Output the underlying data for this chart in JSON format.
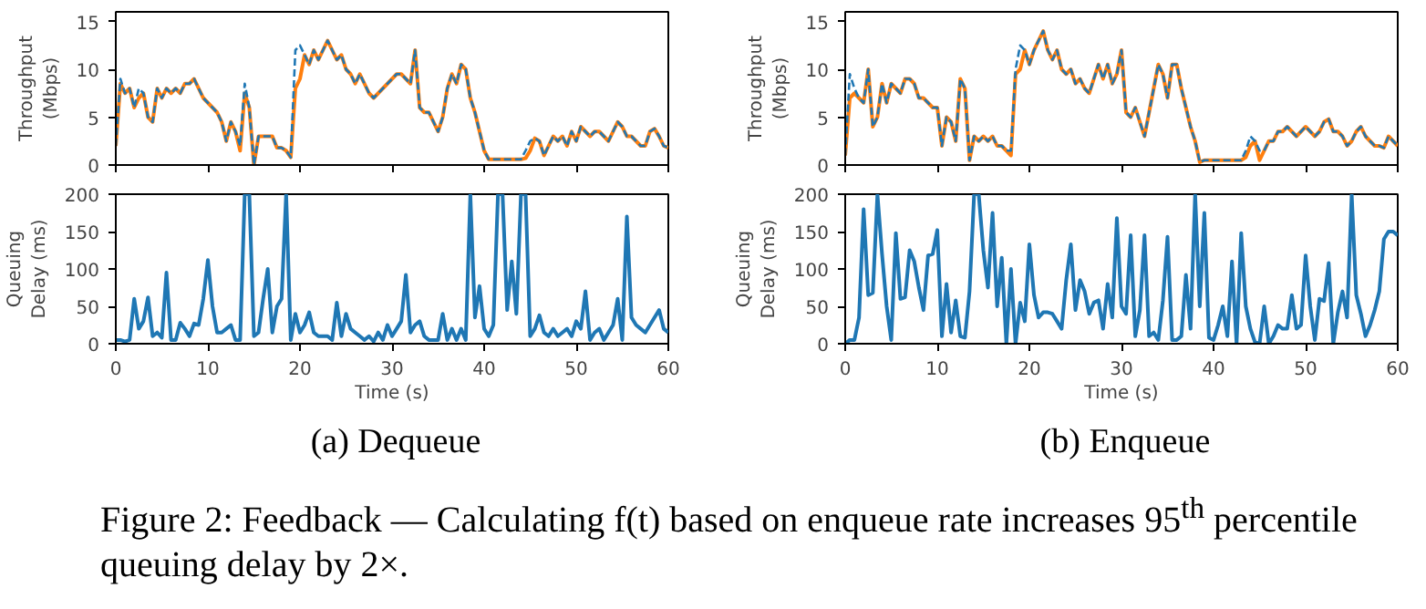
{
  "chart_data": [
    {
      "type": "line",
      "ylabel": "Throughput (Mbps)",
      "xlim": [
        0,
        60
      ],
      "xticks": [
        0,
        10,
        20,
        30,
        40,
        50,
        60
      ],
      "ylim": [
        0,
        16
      ],
      "yticks": [
        0,
        5,
        10,
        15
      ],
      "tick_labels": "y",
      "grid": false,
      "x": [
        0,
        0.5,
        1,
        1.5,
        2,
        2.5,
        3,
        3.5,
        4,
        4.5,
        5,
        5.5,
        6,
        6.5,
        7,
        7.5,
        8,
        8.5,
        9,
        9.5,
        10,
        10.5,
        11,
        11.5,
        12,
        12.5,
        13,
        13.5,
        14,
        14.5,
        15,
        15.5,
        16,
        16.5,
        17,
        17.5,
        18,
        18.5,
        19,
        19.5,
        20,
        20.5,
        21,
        21.5,
        22,
        22.5,
        23,
        23.5,
        24,
        24.5,
        25,
        25.5,
        26,
        26.5,
        27,
        27.5,
        28,
        28.5,
        29,
        29.5,
        30,
        30.5,
        31,
        31.5,
        32,
        32.5,
        33,
        33.5,
        34,
        34.5,
        35,
        35.5,
        36,
        36.5,
        37,
        37.5,
        38,
        38.5,
        39,
        39.5,
        40,
        40.5,
        41,
        41.5,
        42,
        42.5,
        43,
        43.5,
        44,
        44.5,
        45,
        45.5,
        46,
        46.5,
        47,
        47.5,
        48,
        48.5,
        49,
        49.5,
        50,
        50.5,
        51,
        51.5,
        52,
        52.5,
        53,
        53.5,
        54,
        54.5,
        55,
        55.5,
        56,
        56.5,
        57,
        57.5,
        58,
        58.5,
        59,
        59.5,
        60
      ],
      "series": [
        {
          "color": "#1f77b4",
          "line_style": "dashed",
          "values": [
            2,
            9,
            7.5,
            8,
            6,
            8,
            7.5,
            5,
            4.5,
            8,
            7,
            8,
            7.5,
            8,
            7.5,
            8.5,
            8.5,
            9,
            8,
            7,
            6.5,
            6,
            5.5,
            4.5,
            2.5,
            4.5,
            3.5,
            2,
            8.5,
            6,
            0,
            3,
            3,
            3,
            3,
            1.8,
            1.8,
            1.5,
            0.8,
            12,
            12.5,
            11.5,
            10.5,
            12,
            11,
            12,
            13,
            12,
            11,
            11.5,
            10,
            9.5,
            8.5,
            9.5,
            8.5,
            7.5,
            7,
            7.5,
            8,
            8.5,
            9,
            9.5,
            9.5,
            9,
            8.5,
            12,
            6,
            5.5,
            5.5,
            4.5,
            3.5,
            5,
            8,
            9.5,
            8.5,
            10.5,
            10,
            7,
            5.5,
            3.5,
            1.5,
            0.6,
            0.6,
            0.6,
            0.6,
            0.6,
            0.6,
            0.6,
            0.6,
            1.5,
            2.5,
            2.8,
            2.5,
            1,
            2,
            3,
            2.5,
            3,
            2,
            3.5,
            2.5,
            4,
            3.5,
            3,
            3.5,
            3.5,
            3,
            2.5,
            3.5,
            4.5,
            4,
            3,
            3,
            2.5,
            2,
            2,
            3.5,
            3.8,
            3,
            2,
            1.8
          ]
        },
        {
          "color": "#ff7f0e",
          "line_style": "solid",
          "values": [
            2,
            8.5,
            7.5,
            8,
            6,
            7,
            7.5,
            5,
            4.5,
            8,
            7,
            8,
            7.5,
            8,
            7.5,
            8.5,
            8.5,
            9,
            8,
            7,
            6.5,
            6,
            5.5,
            4.5,
            2.5,
            4.5,
            3.5,
            1.5,
            7.5,
            6,
            0,
            3,
            3,
            3,
            3,
            1.8,
            1.8,
            1.5,
            0.8,
            8,
            9,
            11.5,
            10.5,
            12,
            11,
            12,
            13,
            12,
            11,
            11.5,
            10,
            9.5,
            8.5,
            9.5,
            8.5,
            7.5,
            7,
            7.5,
            8,
            8.5,
            9,
            9.5,
            9.5,
            9,
            8.5,
            12,
            6,
            5.5,
            5.5,
            4.5,
            3.5,
            5,
            8,
            9.5,
            8.5,
            10.5,
            10,
            7,
            5.5,
            3.5,
            1.5,
            0.6,
            0.6,
            0.6,
            0.6,
            0.6,
            0.6,
            0.6,
            0.6,
            0.7,
            1.5,
            2.8,
            2.5,
            1,
            2,
            3,
            2.5,
            3,
            2,
            3.5,
            2.5,
            4,
            3.5,
            3,
            3.5,
            3.5,
            3,
            2.5,
            3.5,
            4.5,
            4,
            3,
            3,
            2.5,
            2,
            2,
            3.5,
            3.8,
            3,
            2,
            1.8
          ]
        }
      ]
    },
    {
      "type": "line",
      "ylabel": "Queuing Delay (ms)",
      "xlabel": "Time (s)",
      "xlim": [
        0,
        60
      ],
      "xticks": [
        0,
        10,
        20,
        30,
        40,
        50,
        60
      ],
      "ylim": [
        0,
        200
      ],
      "yticks": [
        0,
        50,
        100,
        150,
        200
      ],
      "grid": false,
      "annotations": [
        "(a) Dequeue"
      ],
      "x": [
        0,
        0.5,
        1,
        1.5,
        2,
        2.5,
        3,
        3.5,
        4,
        4.5,
        5,
        5.5,
        6,
        6.5,
        7,
        7.5,
        8,
        8.5,
        9,
        9.5,
        10,
        10.5,
        11,
        11.5,
        12,
        12.5,
        13,
        13.5,
        14,
        14.5,
        15,
        15.5,
        16,
        16.5,
        17,
        17.5,
        18,
        18.5,
        19,
        19.5,
        20,
        20.5,
        21,
        21.5,
        22,
        22.5,
        23,
        23.5,
        24,
        24.5,
        25,
        25.5,
        26,
        26.5,
        27,
        27.5,
        28,
        28.5,
        29,
        29.5,
        30,
        30.5,
        31,
        31.5,
        32,
        32.5,
        33,
        33.5,
        34,
        34.5,
        35,
        35.5,
        36,
        36.5,
        37,
        37.5,
        38,
        38.5,
        39,
        39.5,
        40,
        40.5,
        41,
        41.5,
        42,
        42.5,
        43,
        43.5,
        44,
        44.5,
        45,
        45.5,
        46,
        46.5,
        47,
        47.5,
        48,
        48.5,
        49,
        49.5,
        50,
        50.5,
        51,
        51.5,
        52,
        52.5,
        53,
        53.5,
        54,
        54.5,
        55,
        55.5,
        56,
        56.5,
        57,
        57.5,
        58,
        58.5,
        59,
        59.5,
        60
      ],
      "series": [
        {
          "color": "#1f77b4",
          "line_style": "solid",
          "values": [
            5,
            5,
            3,
            5,
            60,
            20,
            30,
            62,
            10,
            15,
            8,
            95,
            5,
            5,
            28,
            20,
            10,
            27,
            25,
            60,
            112,
            50,
            15,
            15,
            20,
            25,
            5,
            5,
            200,
            200,
            10,
            15,
            60,
            100,
            15,
            50,
            60,
            200,
            5,
            40,
            15,
            25,
            42,
            15,
            10,
            10,
            10,
            5,
            55,
            10,
            40,
            20,
            15,
            10,
            5,
            10,
            3,
            15,
            5,
            25,
            10,
            20,
            30,
            92,
            15,
            25,
            30,
            10,
            5,
            5,
            5,
            40,
            5,
            20,
            5,
            20,
            5,
            200,
            35,
            77,
            20,
            10,
            25,
            200,
            200,
            45,
            110,
            40,
            200,
            200,
            10,
            20,
            38,
            15,
            10,
            20,
            10,
            15,
            20,
            10,
            30,
            20,
            70,
            5,
            15,
            20,
            5,
            15,
            25,
            60,
            5,
            170,
            35,
            25,
            20,
            15,
            25,
            35,
            45,
            20,
            15
          ]
        }
      ]
    },
    {
      "type": "line",
      "ylabel": "Throughput (Mbps)",
      "xlim": [
        0,
        60
      ],
      "xticks": [
        0,
        10,
        20,
        30,
        40,
        50,
        60
      ],
      "ylim": [
        0,
        16
      ],
      "yticks": [
        0,
        5,
        10,
        15
      ],
      "tick_labels": "y",
      "grid": false,
      "x": [
        0,
        0.5,
        1,
        1.5,
        2,
        2.5,
        3,
        3.5,
        4,
        4.5,
        5,
        5.5,
        6,
        6.5,
        7,
        7.5,
        8,
        8.5,
        9,
        9.5,
        10,
        10.5,
        11,
        11.5,
        12,
        12.5,
        13,
        13.5,
        14,
        14.5,
        15,
        15.5,
        16,
        16.5,
        17,
        17.5,
        18,
        18.5,
        19,
        19.5,
        20,
        20.5,
        21,
        21.5,
        22,
        22.5,
        23,
        23.5,
        24,
        24.5,
        25,
        25.5,
        26,
        26.5,
        27,
        27.5,
        28,
        28.5,
        29,
        29.5,
        30,
        30.5,
        31,
        31.5,
        32,
        32.5,
        33,
        33.5,
        34,
        34.5,
        35,
        35.5,
        36,
        36.5,
        37,
        37.5,
        38,
        38.5,
        39,
        39.5,
        40,
        40.5,
        41,
        41.5,
        42,
        42.5,
        43,
        43.5,
        44,
        44.5,
        45,
        45.5,
        46,
        46.5,
        47,
        47.5,
        48,
        48.5,
        49,
        49.5,
        50,
        50.5,
        51,
        51.5,
        52,
        52.5,
        53,
        53.5,
        54,
        54.5,
        55,
        55.5,
        56,
        56.5,
        57,
        57.5,
        58,
        58.5,
        59,
        59.5,
        60
      ],
      "series": [
        {
          "color": "#1f77b4",
          "line_style": "dashed",
          "values": [
            1,
            9.5,
            8,
            7,
            6.5,
            10,
            4,
            5,
            8.5,
            6.5,
            8.5,
            8,
            7.5,
            9,
            9,
            8.5,
            7,
            7,
            6.5,
            6,
            6,
            2,
            5,
            4.5,
            2.5,
            9,
            8,
            0.5,
            3,
            2.5,
            3,
            2.5,
            3,
            2,
            2,
            1.5,
            1.5,
            10,
            12.5,
            12,
            10.5,
            12,
            13,
            14,
            12,
            11,
            12,
            10,
            9.5,
            10,
            8.5,
            9,
            8,
            7.5,
            9,
            10.5,
            9,
            10.5,
            8.5,
            9.5,
            12,
            5.5,
            5,
            6,
            4.5,
            3,
            5.5,
            8,
            10.5,
            9.5,
            7,
            10.5,
            10.5,
            8,
            6,
            4,
            2.5,
            0.3,
            0.5,
            0.5,
            0.5,
            0.5,
            0.5,
            0.5,
            0.5,
            0.5,
            0.5,
            1.5,
            3,
            2.5,
            1.5,
            1.5,
            2.5,
            2.5,
            3.5,
            3.5,
            4,
            3.5,
            3,
            3.5,
            4,
            3.5,
            3,
            3.5,
            4.5,
            4.8,
            3.5,
            3.5,
            3,
            2,
            2.5,
            3.5,
            4,
            3,
            2.5,
            2,
            2,
            1.8,
            3,
            2.5,
            2
          ]
        },
        {
          "color": "#ff7f0e",
          "line_style": "solid",
          "values": [
            1,
            7,
            7.5,
            7,
            6.5,
            10,
            4,
            5,
            8.5,
            6.5,
            8.5,
            8,
            7.5,
            9,
            9,
            8.5,
            7,
            7,
            6.5,
            6,
            6,
            2,
            5,
            4.5,
            2.5,
            9,
            8,
            0.5,
            3,
            2.5,
            3,
            2.5,
            3,
            2,
            2,
            1.5,
            1,
            9.5,
            10,
            12,
            10.5,
            12,
            13,
            14,
            12,
            11,
            12,
            10,
            9.5,
            10,
            8.5,
            9,
            8,
            7.5,
            9,
            10.5,
            9,
            10.5,
            8.5,
            9.5,
            12,
            5.5,
            5,
            6,
            4.5,
            3,
            5.5,
            8,
            10.5,
            9.5,
            7,
            10.5,
            10.5,
            8,
            6,
            4,
            2.5,
            0.3,
            0.5,
            0.5,
            0.5,
            0.5,
            0.5,
            0.5,
            0.5,
            0.5,
            0.5,
            0.8,
            2,
            2.5,
            0.5,
            1.5,
            2.5,
            2.5,
            3.5,
            3.5,
            4,
            3.5,
            3,
            3.5,
            4,
            3.5,
            3,
            3.5,
            4.5,
            4.8,
            3.5,
            3.5,
            3,
            2,
            2.5,
            3.5,
            4,
            3,
            2.5,
            2,
            2,
            1.8,
            3,
            2.5,
            2
          ]
        }
      ]
    },
    {
      "type": "line",
      "ylabel": "Queuing Delay (ms)",
      "xlabel": "Time (s)",
      "xlim": [
        0,
        60
      ],
      "xticks": [
        0,
        10,
        20,
        30,
        40,
        50,
        60
      ],
      "ylim": [
        0,
        200
      ],
      "yticks": [
        0,
        50,
        100,
        150,
        200
      ],
      "grid": false,
      "annotations": [
        "(b) Enqueue",
        "Figure 2: Feedback — Calculating f(t) based on enqueue rate increases 95$^{th}$ percentile queuing delay by 2×."
      ],
      "x": [
        0,
        0.5,
        1,
        1.5,
        2,
        2.5,
        3,
        3.5,
        4,
        4.5,
        5,
        5.5,
        6,
        6.5,
        7,
        7.5,
        8,
        8.5,
        9,
        9.5,
        10,
        10.5,
        11,
        11.5,
        12,
        12.5,
        13,
        13.5,
        14,
        14.5,
        15,
        15.5,
        16,
        16.5,
        17,
        17.5,
        18,
        18.5,
        19,
        19.5,
        20,
        20.5,
        21,
        21.5,
        22,
        22.5,
        23,
        23.5,
        24,
        24.5,
        25,
        25.5,
        26,
        26.5,
        27,
        27.5,
        28,
        28.5,
        29,
        29.5,
        30,
        30.5,
        31,
        31.5,
        32,
        32.5,
        33,
        33.5,
        34,
        34.5,
        35,
        35.5,
        36,
        36.5,
        37,
        37.5,
        38,
        38.5,
        39,
        39.5,
        40,
        40.5,
        41,
        41.5,
        42,
        42.5,
        43,
        43.5,
        44,
        44.5,
        45,
        45.5,
        46,
        46.5,
        47,
        47.5,
        48,
        48.5,
        49,
        49.5,
        50,
        50.5,
        51,
        51.5,
        52,
        52.5,
        53,
        53.5,
        54,
        54.5,
        55,
        55.5,
        56,
        56.5,
        57,
        57.5,
        58,
        58.5,
        59,
        59.5,
        60
      ],
      "series": [
        {
          "color": "#1f77b4",
          "line_style": "solid",
          "values": [
            0,
            5,
            5,
            35,
            180,
            65,
            68,
            200,
            120,
            50,
            5,
            148,
            60,
            62,
            125,
            110,
            75,
            45,
            118,
            120,
            152,
            10,
            80,
            15,
            58,
            10,
            8,
            70,
            200,
            200,
            125,
            75,
            175,
            50,
            115,
            0,
            100,
            0,
            55,
            30,
            133,
            65,
            35,
            42,
            42,
            40,
            30,
            20,
            85,
            133,
            45,
            85,
            70,
            40,
            55,
            58,
            20,
            80,
            35,
            168,
            50,
            40,
            145,
            10,
            45,
            145,
            10,
            15,
            5,
            58,
            143,
            5,
            5,
            10,
            92,
            20,
            200,
            50,
            175,
            8,
            5,
            25,
            50,
            10,
            110,
            0,
            148,
            50,
            20,
            2,
            0,
            50,
            0,
            10,
            25,
            20,
            20,
            65,
            20,
            25,
            118,
            50,
            5,
            60,
            57,
            108,
            0,
            42,
            70,
            35,
            200,
            65,
            40,
            10,
            25,
            45,
            70,
            140,
            150,
            150,
            145
          ]
        }
      ]
    }
  ]
}
